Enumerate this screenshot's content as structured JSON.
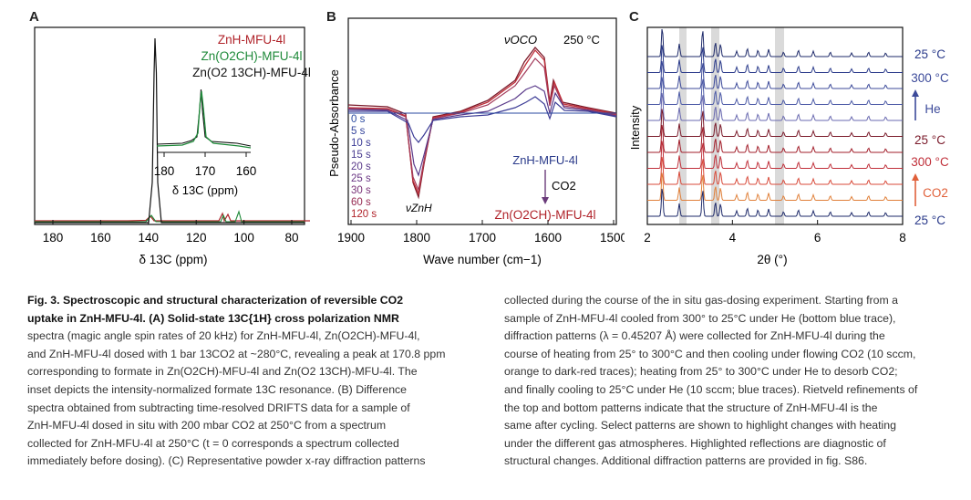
{
  "figure": {
    "panels": [
      {
        "letter": "A",
        "legend": [
          "ZnH-MFU-4l",
          "Zn(O2CH)-MFU-4l",
          "Zn(O2 13CH)-MFU-4l"
        ],
        "legend_colors": [
          "#b0232a",
          "#1f8a3a",
          "#111111"
        ],
        "xlabel": "δ 13C (ppm)",
        "xticks": [
          180,
          160,
          140,
          120,
          100,
          80
        ],
        "inset": {
          "xticks": [
            180,
            170,
            160
          ],
          "xlabel": "δ 13C (ppm)"
        },
        "peak_ppm": 170.8
      },
      {
        "letter": "B",
        "annotation_temp": "250 °C",
        "peak_label_oco": "νOCO",
        "peak_label_znh": "νZnH",
        "ylabel": "Pseudo-Absorbance",
        "xlabel": "Wave number (cm−1)",
        "xticks": [
          1900,
          1800,
          1700,
          1600,
          1500
        ],
        "time_labels": [
          "0 s",
          "5 s",
          "10 s",
          "15 s",
          "20 s",
          "25 s",
          "30 s",
          "60 s",
          "120 s"
        ],
        "reaction": {
          "from": "ZnH-MFU-4l",
          "reagent": "CO2",
          "to": "Zn(O2CH)-MFU-4l"
        }
      },
      {
        "letter": "C",
        "ylabel": "Intensity",
        "xlabel": "2θ (°)",
        "xticks": [
          2,
          4,
          6,
          8
        ],
        "right_labels": [
          "25 °C",
          "300 °C",
          "He",
          "25 °C",
          "300 °C",
          "CO2",
          "25 °C"
        ]
      }
    ]
  },
  "caption": {
    "left_lines": [
      "Fig. 3. Spectroscopic and structural characterization of reversible CO2",
      "uptake in ZnH-MFU-4l. (A) Solid-state 13C{1H} cross polarization NMR",
      "spectra (magic angle spin rates of 20 kHz) for ZnH-MFU-4l, Zn(O2CH)-MFU-4l,",
      "and ZnH-MFU-4l dosed with 1 bar 13CO2 at ~280°C, revealing a peak at 170.8 ppm",
      "corresponding to formate in Zn(O2CH)-MFU-4l and Zn(O2 13CH)-MFU-4l. The",
      "inset depicts the intensity-normalized formate 13C resonance. (B) Difference",
      "spectra obtained from subtracting time-resolved DRIFTS data for a sample of",
      "ZnH-MFU-4l dosed in situ with 200 mbar CO2 at 250°C from a spectrum",
      "collected for ZnH-MFU-4l at 250°C (t = 0 corresponds a spectrum collected",
      "immediately before dosing). (C) Representative powder x-ray diffraction patterns"
    ],
    "right_lines": [
      "collected during the course of the in situ gas-dosing experiment. Starting from a",
      "sample of ZnH-MFU-4l cooled from 300° to 25°C under He (bottom blue trace),",
      "diffraction patterns (λ = 0.45207 Å) were collected for ZnH-MFU-4l during the",
      "course of heating from 25° to 300°C and then cooling under flowing CO2 (10 sccm,",
      "orange to dark-red traces); heating from 25° to 300°C under He to desorb CO2;",
      "and finally cooling to 25°C under He (10 sccm; blue traces). Rietveld refinements of",
      "the top and bottom patterns indicate that the structure of ZnH-MFU-4l is the",
      "same after cycling. Select patterns are shown to highlight changes with heating",
      "under the different gas atmospheres. Highlighted reflections are diagnostic of",
      "structural changes. Additional diffraction patterns are provided in fig. S86."
    ]
  }
}
